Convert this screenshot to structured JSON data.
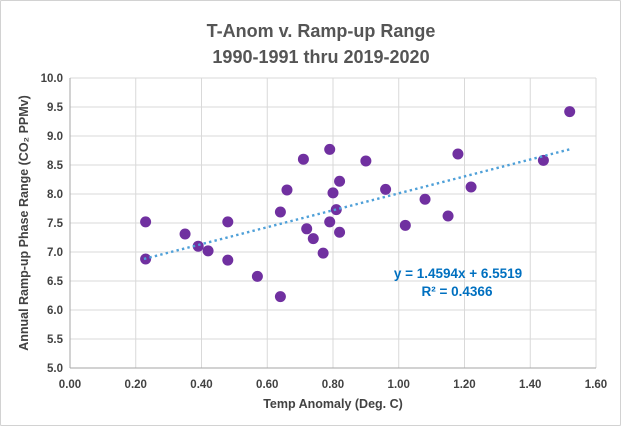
{
  "chart": {
    "title_line1": "T-Anom v. Ramp-up Range",
    "title_line2": "1990-1991 thru 2019-2020",
    "x_axis_title": "Temp Anomaly (Deg. C)",
    "y_axis_title": "Annual Ramp-up Phase Range (CO₂ PPMv)",
    "equation_line1": "y = 1.4594x + 6.5519",
    "equation_line2": "R² = 0.4366"
  },
  "chart_data": {
    "type": "scatter",
    "title": "T-Anom v. Ramp-up Range 1990-1991 thru 2019-2020",
    "xlabel": "Temp Anomaly (Deg. C)",
    "ylabel": "Annual Ramp-up Phase Range (CO₂ PPMv)",
    "xlim": [
      0.0,
      1.6
    ],
    "ylim": [
      5.0,
      10.0
    ],
    "x_ticks": [
      "0.00",
      "0.20",
      "0.40",
      "0.60",
      "0.80",
      "1.00",
      "1.20",
      "1.40",
      "1.60"
    ],
    "y_ticks": [
      "5.0",
      "5.5",
      "6.0",
      "6.5",
      "7.0",
      "7.5",
      "8.0",
      "8.5",
      "9.0",
      "9.5",
      "10.0"
    ],
    "grid": true,
    "legend": "none",
    "points": [
      [
        0.23,
        7.52
      ],
      [
        0.23,
        6.88
      ],
      [
        0.35,
        7.31
      ],
      [
        0.39,
        7.1
      ],
      [
        0.42,
        7.02
      ],
      [
        0.48,
        7.52
      ],
      [
        0.48,
        6.86
      ],
      [
        0.57,
        6.58
      ],
      [
        0.64,
        6.23
      ],
      [
        0.64,
        7.69
      ],
      [
        0.66,
        8.07
      ],
      [
        0.71,
        8.6
      ],
      [
        0.72,
        7.4
      ],
      [
        0.74,
        7.23
      ],
      [
        0.77,
        6.98
      ],
      [
        0.79,
        8.77
      ],
      [
        0.79,
        7.52
      ],
      [
        0.8,
        8.02
      ],
      [
        0.81,
        7.73
      ],
      [
        0.82,
        8.22
      ],
      [
        0.82,
        7.34
      ],
      [
        0.9,
        8.57
      ],
      [
        0.96,
        8.08
      ],
      [
        1.02,
        7.46
      ],
      [
        1.08,
        7.91
      ],
      [
        1.15,
        7.62
      ],
      [
        1.18,
        8.69
      ],
      [
        1.22,
        8.12
      ],
      [
        1.44,
        8.58
      ],
      [
        1.52,
        9.42
      ]
    ],
    "trendline": {
      "type": "linear",
      "slope": 1.4594,
      "intercept": 6.5519,
      "x_start": 0.225,
      "x_end": 1.525,
      "style": "dotted",
      "equation_label": "y = 1.4594x + 6.5519",
      "r_squared_label": "R² = 0.4366",
      "r_squared": 0.4366
    },
    "colors": {
      "point": "#7030A0",
      "trendline": "#4FA0D8",
      "equation_text": "#0070C0",
      "gridline": "#D9D9D9",
      "axis_line": "#A6A6A6",
      "tick_text": "#424242",
      "title_text": "#555555"
    }
  }
}
